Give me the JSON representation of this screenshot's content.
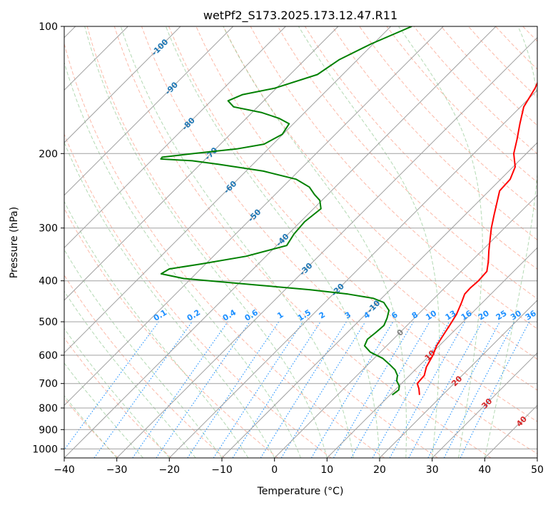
{
  "chart_data": {
    "type": "line",
    "title": "wetPf2_S173.2025.173.12.47.R11",
    "xlabel": "Temperature (°C)",
    "ylabel": "Pressure (hPa)",
    "xlim": [
      -40,
      50
    ],
    "ylim": [
      1050,
      100
    ],
    "y_scale": "log",
    "grid": true,
    "x_ticks": [
      "−40",
      "−30",
      "−20",
      "−10",
      "0",
      "10",
      "20",
      "30",
      "40",
      "50"
    ],
    "x_tick_values": [
      -40,
      -30,
      -20,
      -10,
      0,
      10,
      20,
      30,
      40,
      50
    ],
    "y_ticks": [
      "100",
      "200",
      "300",
      "400",
      "500",
      "600",
      "700",
      "800",
      "900",
      "1000"
    ],
    "y_tick_values": [
      100,
      200,
      300,
      400,
      500,
      600,
      700,
      800,
      900,
      1000
    ],
    "colors": {
      "temperature": "#ff0000",
      "dewpoint": "#008000",
      "isotherm": "#a0a0a0",
      "dry_adiabat": "#fa8060",
      "moist_adiabat": "#80c080",
      "mixing_ratio": "#1e90ff",
      "isotherm_label": "#1f77b4",
      "theta_label": "#d62728"
    },
    "series": [
      {
        "key": "temperature",
        "p": [
          745,
          720,
          700,
          670,
          640,
          600,
          570,
          540,
          510,
          480,
          450,
          430,
          415,
          400,
          380,
          360,
          340,
          320,
          300,
          280,
          260,
          245,
          230,
          215,
          200,
          185,
          170,
          155,
          140,
          125,
          115,
          108,
          100
        ],
        "t": [
          15.6,
          14.3,
          13.0,
          12.8,
          11.6,
          10.6,
          9.5,
          8.8,
          8.1,
          7.3,
          6.0,
          5.0,
          4.9,
          5.1,
          4.9,
          3.3,
          1.4,
          -0.5,
          -2.5,
          -4.4,
          -6.4,
          -8.0,
          -8.2,
          -9.6,
          -12.4,
          -14.5,
          -16.9,
          -19.4,
          -20.8,
          -23.0,
          -23.1,
          -23.9,
          -24.6
        ]
      },
      {
        "key": "dewpoint",
        "p": [
          745,
          725,
          710,
          690,
          670,
          650,
          630,
          610,
          590,
          570,
          550,
          530,
          510,
          490,
          470,
          450,
          440,
          430,
          420,
          410,
          395,
          385,
          375,
          365,
          350,
          330,
          310,
          290,
          270,
          258,
          250,
          240,
          230,
          220,
          212,
          208,
          206,
          204,
          200,
          195,
          190,
          180,
          170,
          165,
          160,
          155,
          150,
          145,
          140,
          130,
          120,
          110,
          100
        ],
        "td": [
          10.4,
          10.7,
          10.1,
          8.6,
          7.7,
          6.2,
          4.0,
          1.6,
          -1.9,
          -4.2,
          -4.9,
          -4.6,
          -4.4,
          -5.2,
          -6.3,
          -8.8,
          -11.6,
          -17.2,
          -25.2,
          -35.6,
          -51.4,
          -56.6,
          -56.0,
          -50.9,
          -43.8,
          -38.1,
          -38.9,
          -39.2,
          -38.6,
          -40.4,
          -42.5,
          -44.9,
          -48.9,
          -56.7,
          -66.6,
          -72.2,
          -78.5,
          -78.6,
          -73.3,
          -66.0,
          -61.7,
          -60.1,
          -60.8,
          -63.8,
          -68.1,
          -74.6,
          -76.8,
          -75.2,
          -70.3,
          -64.8,
          -63.5,
          -60.4,
          -56.0
        ]
      }
    ],
    "isotherm_labels": [
      "-100",
      "-90",
      "-80",
      "-70",
      "-60",
      "-50",
      "-40",
      "-30",
      "-20",
      "-10",
      "0",
      "10",
      "20",
      "30",
      "40"
    ],
    "isotherm_label_values": [
      -100,
      -90,
      -80,
      -70,
      -60,
      -50,
      -40,
      -30,
      -20,
      -10,
      0,
      10,
      20,
      30,
      40
    ],
    "isotherm_label_pressures": [
      112,
      140,
      170,
      200,
      240,
      280,
      320,
      375,
      420,
      460,
      530,
      600,
      690,
      780,
      860
    ],
    "mixing_ratio_labels": [
      "0.1",
      "0.2",
      "0.4",
      "0.6",
      "1",
      "1.5",
      "2",
      "3",
      "4",
      "6",
      "8",
      "10",
      "13",
      "16",
      "20",
      "25",
      "30",
      "36"
    ],
    "mixing_ratio_values": [
      0.1,
      0.2,
      0.4,
      0.6,
      1,
      1.5,
      2,
      3,
      4,
      6,
      8,
      10,
      13,
      16,
      20,
      25,
      30,
      36
    ]
  }
}
